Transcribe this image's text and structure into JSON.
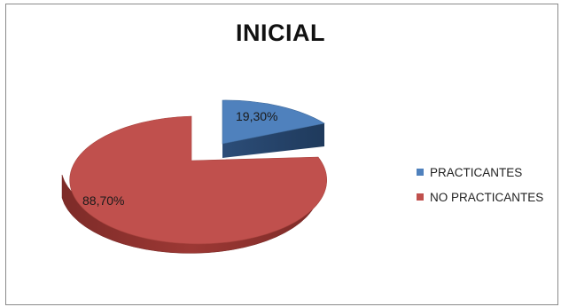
{
  "chart_data": {
    "type": "pie",
    "title": "INICIAL",
    "categories": [
      "PRACTICANTES",
      "NO PRACTICANTES"
    ],
    "values": [
      19.3,
      88.7
    ],
    "labels": [
      "19,30%",
      "88,70%"
    ],
    "colors": [
      "#4F81BD",
      "#C0504D"
    ],
    "legend_position": "right",
    "style": "3d-exploded"
  }
}
